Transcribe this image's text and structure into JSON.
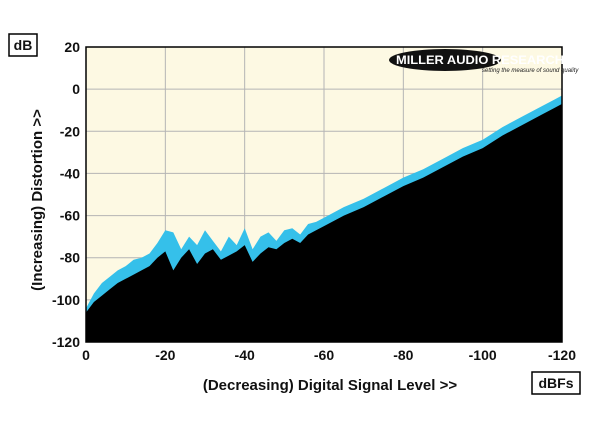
{
  "chart_data": {
    "type": "area",
    "unit_y": "dB",
    "unit_x": "dBFs",
    "xlabel": "(Decreasing) Digital Signal Level >>",
    "ylabel": "(Increasing) Distortion >>",
    "xlim": [
      0,
      -120
    ],
    "ylim": [
      -120,
      20
    ],
    "x_ticks": [
      "0",
      "-20",
      "-40",
      "-60",
      "-80",
      "-100",
      "-120"
    ],
    "y_ticks": [
      "20",
      "0",
      "-20",
      "-40",
      "-60",
      "-80",
      "-100",
      "-120"
    ],
    "grid": true,
    "colors": {
      "background": "#fdf9e3",
      "upper_band": "#35c0ea",
      "lower_fill": "#000000",
      "grid": "#b4b4b4",
      "frame": "#000000"
    },
    "series": [
      {
        "role": "upper",
        "color": "#35c0ea",
        "x": [
          0,
          -2,
          -4,
          -6,
          -8,
          -10,
          -12,
          -14,
          -16,
          -18,
          -20,
          -22,
          -24,
          -26,
          -28,
          -30,
          -32,
          -34,
          -36,
          -38,
          -40,
          -42,
          -44,
          -46,
          -48,
          -50,
          -52,
          -54,
          -56,
          -58,
          -60,
          -65,
          -70,
          -75,
          -80,
          -85,
          -90,
          -95,
          -100,
          -105,
          -110,
          -115,
          -118,
          -120
        ],
        "y": [
          -104,
          -97,
          -92,
          -89,
          -86,
          -84,
          -81,
          -80,
          -78,
          -73,
          -67,
          -68,
          -76,
          -70,
          -74,
          -67,
          -72,
          -77,
          -70,
          -74,
          -66,
          -76,
          -70,
          -68,
          -72,
          -67,
          -66,
          -69,
          -64,
          -63,
          -61,
          -56,
          -52,
          -47,
          -42,
          -38,
          -33,
          -28,
          -24,
          -18,
          -13,
          -8,
          -5,
          -3
        ]
      },
      {
        "role": "lower",
        "color": "#000000",
        "x": [
          0,
          -2,
          -4,
          -6,
          -8,
          -10,
          -12,
          -14,
          -16,
          -18,
          -20,
          -22,
          -24,
          -26,
          -28,
          -30,
          -32,
          -34,
          -36,
          -38,
          -40,
          -42,
          -44,
          -46,
          -48,
          -50,
          -52,
          -54,
          -56,
          -58,
          -60,
          -65,
          -70,
          -75,
          -80,
          -85,
          -90,
          -95,
          -100,
          -105,
          -110,
          -115,
          -118,
          -120
        ],
        "y": [
          -106,
          -101,
          -98,
          -95,
          -92,
          -90,
          -88,
          -86,
          -84,
          -80,
          -77,
          -86,
          -80,
          -76,
          -83,
          -78,
          -76,
          -81,
          -79,
          -77,
          -74,
          -82,
          -78,
          -75,
          -76,
          -73,
          -71,
          -73,
          -69,
          -67,
          -65,
          -60,
          -56,
          -51,
          -46,
          -42,
          -37,
          -32,
          -28,
          -22,
          -17,
          -12,
          -9,
          -7
        ]
      }
    ],
    "logo": {
      "name": "MILLER AUDIO RESEARCH",
      "tagline": "setting the measure of sound quality"
    }
  }
}
